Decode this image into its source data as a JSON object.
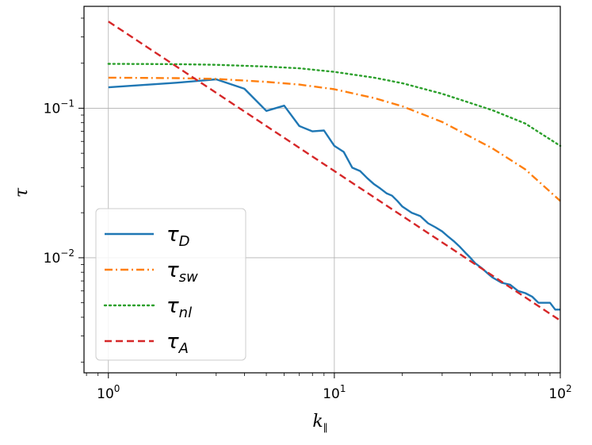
{
  "chart_data": {
    "type": "line",
    "title": "",
    "xlabel": "k",
    "xlabel_sub": "∥",
    "ylabel": "τ",
    "xscale": "log",
    "yscale": "log",
    "xlim": [
      0.78,
      100
    ],
    "ylim": [
      0.0017,
      0.48
    ],
    "grid": true,
    "legend_position": "lower-left",
    "x_ticks": [
      {
        "base": "10",
        "exp": "0",
        "value": 1
      },
      {
        "base": "10",
        "exp": "1",
        "value": 10
      },
      {
        "base": "10",
        "exp": "2",
        "value": 100
      }
    ],
    "y_ticks": [
      {
        "base": "10",
        "exp": "−1",
        "value": 0.1
      },
      {
        "base": "10",
        "exp": "−2",
        "value": 0.01
      }
    ],
    "series": [
      {
        "name": "τ_D",
        "label_main": "τ",
        "label_sub": "D",
        "color": "#1f77b4",
        "style": "solid",
        "x": [
          1,
          2,
          3,
          4,
          5,
          6,
          7,
          8,
          9,
          10,
          11,
          12,
          13,
          14,
          15,
          16,
          17,
          18,
          19,
          20,
          22,
          24,
          26,
          28,
          30,
          32,
          34,
          36,
          38,
          40,
          42,
          45,
          48,
          50,
          55,
          60,
          65,
          70,
          75,
          80,
          90,
          95,
          100
        ],
        "values": [
          0.138,
          0.148,
          0.156,
          0.135,
          0.096,
          0.104,
          0.076,
          0.07,
          0.071,
          0.056,
          0.051,
          0.04,
          0.038,
          0.034,
          0.031,
          0.029,
          0.027,
          0.026,
          0.024,
          0.022,
          0.02,
          0.019,
          0.017,
          0.016,
          0.015,
          0.0138,
          0.0128,
          0.0118,
          0.0108,
          0.01,
          0.0092,
          0.0085,
          0.0078,
          0.0074,
          0.0068,
          0.0066,
          0.006,
          0.0058,
          0.0055,
          0.005,
          0.005,
          0.0045,
          0.0045
        ]
      },
      {
        "name": "τ_sw",
        "label_main": "τ",
        "label_sub": "sw",
        "color": "#ff7f0e",
        "style": "dashdot",
        "x": [
          1,
          2,
          3,
          5,
          7,
          10,
          15,
          20,
          30,
          50,
          70,
          100
        ],
        "values": [
          0.16,
          0.159,
          0.157,
          0.15,
          0.144,
          0.134,
          0.117,
          0.103,
          0.081,
          0.054,
          0.039,
          0.024
        ]
      },
      {
        "name": "τ_nl",
        "label_main": "τ",
        "label_sub": "nl",
        "color": "#2ca02c",
        "style": "dotted",
        "x": [
          1,
          2,
          3,
          5,
          7,
          10,
          15,
          20,
          30,
          50,
          70,
          100
        ],
        "values": [
          0.198,
          0.197,
          0.195,
          0.19,
          0.185,
          0.175,
          0.16,
          0.147,
          0.125,
          0.097,
          0.079,
          0.056
        ]
      },
      {
        "name": "τ_A",
        "label_main": "τ",
        "label_sub": "A",
        "color": "#d62728",
        "style": "dashed",
        "x": [
          1,
          100
        ],
        "values": [
          0.38,
          0.0038
        ]
      }
    ]
  }
}
